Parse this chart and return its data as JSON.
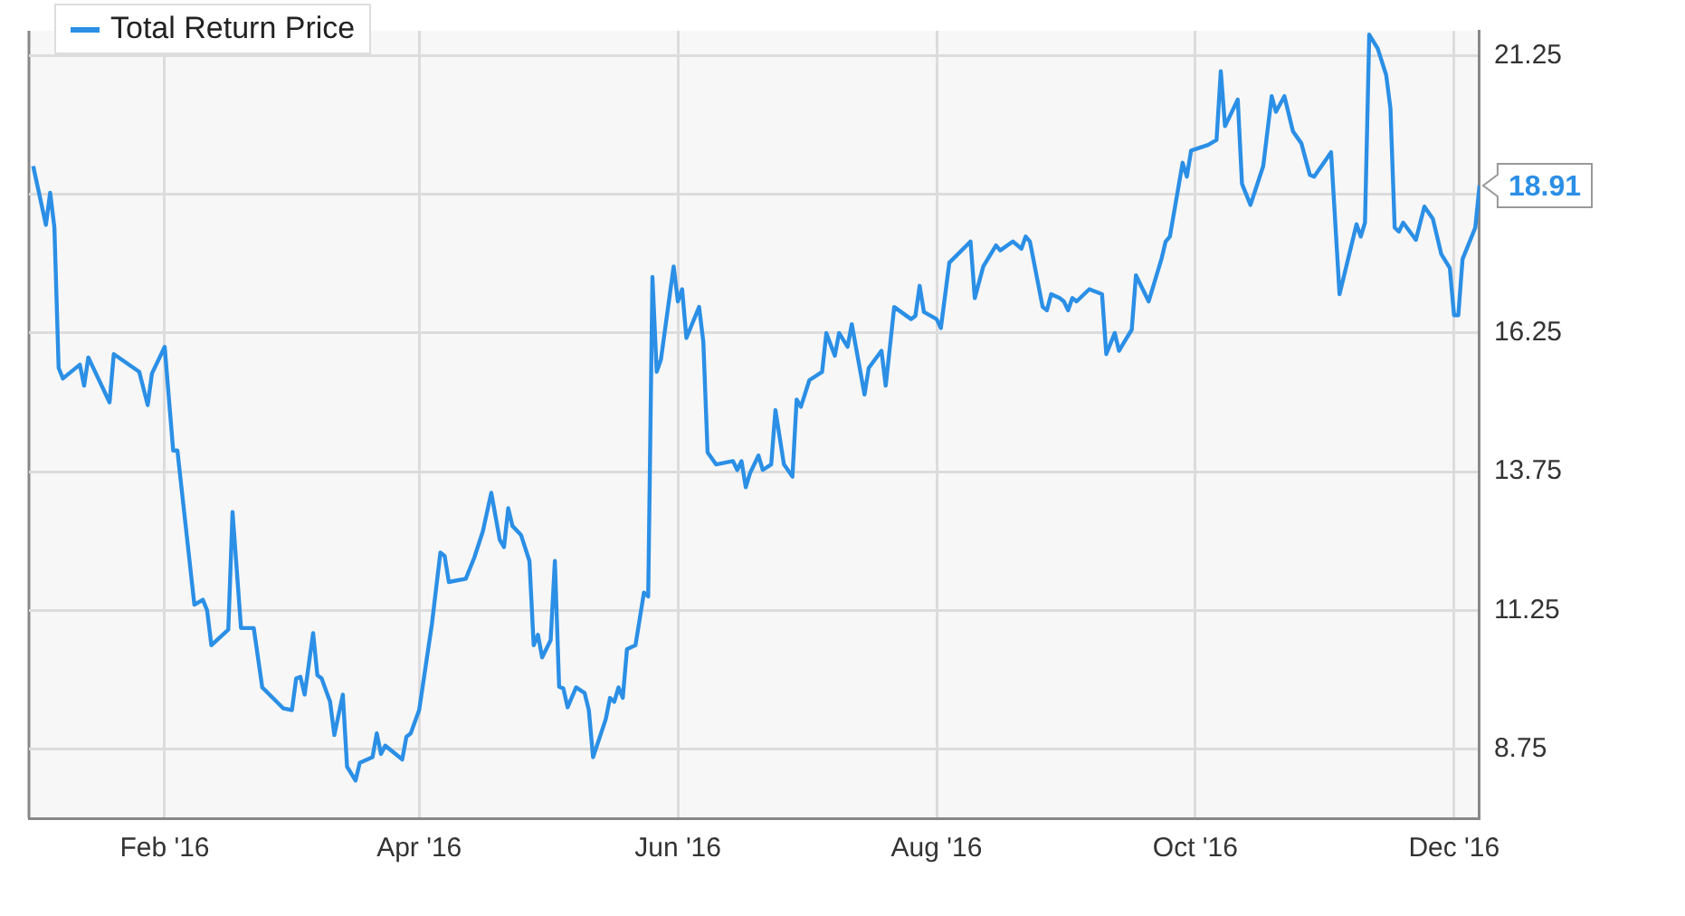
{
  "chart_data": {
    "type": "line",
    "legend": "top left",
    "grid": true,
    "marker": "none",
    "xlim": [
      "2015-12-31",
      "2016-12-07"
    ],
    "xticks": [
      {
        "value": "2016-02-01",
        "label": "Feb '16"
      },
      {
        "value": "2016-04-01",
        "label": "Apr '16"
      },
      {
        "value": "2016-06-01",
        "label": "Jun '16"
      },
      {
        "value": "2016-08-01",
        "label": "Aug '16"
      },
      {
        "value": "2016-10-01",
        "label": "Oct '16"
      },
      {
        "value": "2016-12-01",
        "label": "Dec '16"
      }
    ],
    "ylim": [
      7.5,
      21.7
    ],
    "yticks": [
      8.75,
      11.25,
      13.75,
      16.25,
      {
        "value": 18.75,
        "label": null
      },
      21.25
    ],
    "annotations": [
      {
        "text": "18.91",
        "x": "2016-12-07",
        "y": 18.91
      }
    ],
    "x": [
      "2016-01-01",
      "2016-01-04",
      "2016-01-05",
      "2016-01-06",
      "2016-01-07",
      "2016-01-08",
      "2016-01-12",
      "2016-01-13",
      "2016-01-14",
      "2016-01-19",
      "2016-01-20",
      "2016-01-26",
      "2016-01-28",
      "2016-01-29",
      "2016-02-01",
      "2016-02-03",
      "2016-02-04",
      "2016-02-08",
      "2016-02-10",
      "2016-02-11",
      "2016-02-12",
      "2016-02-16",
      "2016-02-17",
      "2016-02-19",
      "2016-02-22",
      "2016-02-24",
      "2016-02-29",
      "2016-03-02",
      "2016-03-03",
      "2016-03-04",
      "2016-03-05",
      "2016-03-07",
      "2016-03-08",
      "2016-03-09",
      "2016-03-11",
      "2016-03-12",
      "2016-03-14",
      "2016-03-15",
      "2016-03-17",
      "2016-03-18",
      "2016-03-21",
      "2016-03-22",
      "2016-03-23",
      "2016-03-24",
      "2016-03-28",
      "2016-03-29",
      "2016-03-30",
      "2016-04-01",
      "2016-04-04",
      "2016-04-06",
      "2016-04-07",
      "2016-04-08",
      "2016-04-12",
      "2016-04-14",
      "2016-04-16",
      "2016-04-18",
      "2016-04-20",
      "2016-04-21",
      "2016-04-22",
      "2016-04-23",
      "2016-04-25",
      "2016-04-27",
      "2016-04-28",
      "2016-04-29",
      "2016-04-30",
      "2016-05-02",
      "2016-05-03",
      "2016-05-04",
      "2016-05-05",
      "2016-05-06",
      "2016-05-08",
      "2016-05-10",
      "2016-05-11",
      "2016-05-12",
      "2016-05-15",
      "2016-05-16",
      "2016-05-17",
      "2016-05-18",
      "2016-05-19",
      "2016-05-20",
      "2016-05-22",
      "2016-05-24",
      "2016-05-25",
      "2016-05-26",
      "2016-05-27",
      "2016-05-28",
      "2016-05-31",
      "2016-06-01",
      "2016-06-02",
      "2016-06-03",
      "2016-06-06",
      "2016-06-07",
      "2016-06-08",
      "2016-06-10",
      "2016-06-14",
      "2016-06-15",
      "2016-06-16",
      "2016-06-17",
      "2016-06-18",
      "2016-06-20",
      "2016-06-21",
      "2016-06-23",
      "2016-06-24",
      "2016-06-26",
      "2016-06-28",
      "2016-06-29",
      "2016-06-30",
      "2016-07-02",
      "2016-07-05",
      "2016-07-06",
      "2016-07-08",
      "2016-07-09",
      "2016-07-11",
      "2016-07-12",
      "2016-07-15",
      "2016-07-16",
      "2016-07-19",
      "2016-07-20",
      "2016-07-22",
      "2016-07-26",
      "2016-07-27",
      "2016-07-28",
      "2016-07-29",
      "2016-08-01",
      "2016-08-02",
      "2016-08-04",
      "2016-08-06",
      "2016-08-09",
      "2016-08-10",
      "2016-08-12",
      "2016-08-15",
      "2016-08-16",
      "2016-08-19",
      "2016-08-21",
      "2016-08-22",
      "2016-08-23",
      "2016-08-26",
      "2016-08-27",
      "2016-08-28",
      "2016-08-30",
      "2016-08-31",
      "2016-09-01",
      "2016-09-02",
      "2016-09-03",
      "2016-09-06",
      "2016-09-09",
      "2016-09-10",
      "2016-09-12",
      "2016-09-13",
      "2016-09-14",
      "2016-09-16",
      "2016-09-17",
      "2016-09-20",
      "2016-09-23",
      "2016-09-24",
      "2016-09-25",
      "2016-09-28",
      "2016-09-29",
      "2016-09-30",
      "2016-10-04",
      "2016-10-06",
      "2016-10-07",
      "2016-10-08",
      "2016-10-11",
      "2016-10-12",
      "2016-10-14",
      "2016-10-17",
      "2016-10-19",
      "2016-10-20",
      "2016-10-22",
      "2016-10-24",
      "2016-10-26",
      "2016-10-28",
      "2016-10-29",
      "2016-11-02",
      "2016-11-04",
      "2016-11-08",
      "2016-11-09",
      "2016-11-10",
      "2016-11-11",
      "2016-11-13",
      "2016-11-15",
      "2016-11-16",
      "2016-11-17",
      "2016-11-18",
      "2016-11-19",
      "2016-11-22",
      "2016-11-24",
      "2016-11-26",
      "2016-11-28",
      "2016-11-30",
      "2016-12-01",
      "2016-12-02",
      "2016-12-03",
      "2016-12-06",
      "2016-12-07"
    ],
    "series": [
      {
        "name": "Total Return Price",
        "color": "#2b8fe6",
        "values": [
          19.26,
          18.2,
          18.78,
          18.15,
          15.62,
          15.43,
          15.68,
          15.3,
          15.81,
          15.0,
          15.87,
          15.55,
          14.95,
          15.52,
          16.0,
          14.13,
          14.13,
          11.35,
          11.44,
          11.25,
          10.62,
          10.9,
          13.02,
          10.93,
          10.93,
          9.86,
          9.48,
          9.45,
          10.02,
          10.05,
          9.73,
          10.84,
          10.08,
          10.02,
          9.6,
          9.0,
          9.73,
          8.43,
          8.18,
          8.5,
          8.6,
          9.03,
          8.66,
          8.81,
          8.56,
          8.97,
          9.03,
          9.45,
          11.0,
          12.29,
          12.23,
          11.76,
          11.82,
          12.2,
          12.67,
          13.37,
          12.52,
          12.39,
          13.09,
          12.77,
          12.61,
          12.14,
          10.62,
          10.81,
          10.4,
          10.71,
          12.14,
          9.87,
          9.84,
          9.5,
          9.86,
          9.76,
          9.45,
          8.6,
          9.29,
          9.67,
          9.6,
          9.86,
          9.67,
          10.55,
          10.62,
          11.57,
          11.5,
          17.26,
          15.55,
          15.77,
          17.45,
          16.82,
          17.04,
          16.16,
          16.72,
          16.09,
          14.1,
          13.88,
          13.94,
          13.78,
          13.94,
          13.47,
          13.72,
          14.04,
          13.78,
          13.88,
          14.86,
          13.88,
          13.66,
          15.05,
          14.92,
          15.4,
          15.55,
          16.25,
          15.84,
          16.25,
          16.0,
          16.41,
          15.14,
          15.62,
          15.93,
          15.3,
          16.72,
          16.5,
          16.56,
          17.1,
          16.63,
          16.5,
          16.34,
          17.52,
          17.67,
          17.9,
          16.88,
          17.45,
          17.83,
          17.74,
          17.9,
          17.77,
          17.99,
          17.9,
          16.72,
          16.66,
          16.95,
          16.88,
          16.82,
          16.66,
          16.88,
          16.82,
          17.04,
          16.95,
          15.87,
          16.25,
          15.93,
          16.06,
          16.31,
          17.29,
          16.82,
          17.58,
          17.9,
          17.99,
          19.32,
          19.07,
          19.54,
          19.64,
          19.73,
          20.97,
          19.98,
          20.46,
          18.94,
          18.56,
          19.26,
          20.52,
          20.24,
          20.52,
          19.89,
          19.67,
          19.1,
          19.07,
          19.51,
          16.95,
          18.21,
          17.99,
          18.24,
          21.63,
          21.38,
          20.9,
          20.3,
          18.15,
          18.08,
          18.24,
          17.93,
          18.53,
          18.31,
          17.67,
          17.42,
          16.57,
          16.57,
          17.58,
          18.15,
          18.91
        ]
      }
    ]
  }
}
